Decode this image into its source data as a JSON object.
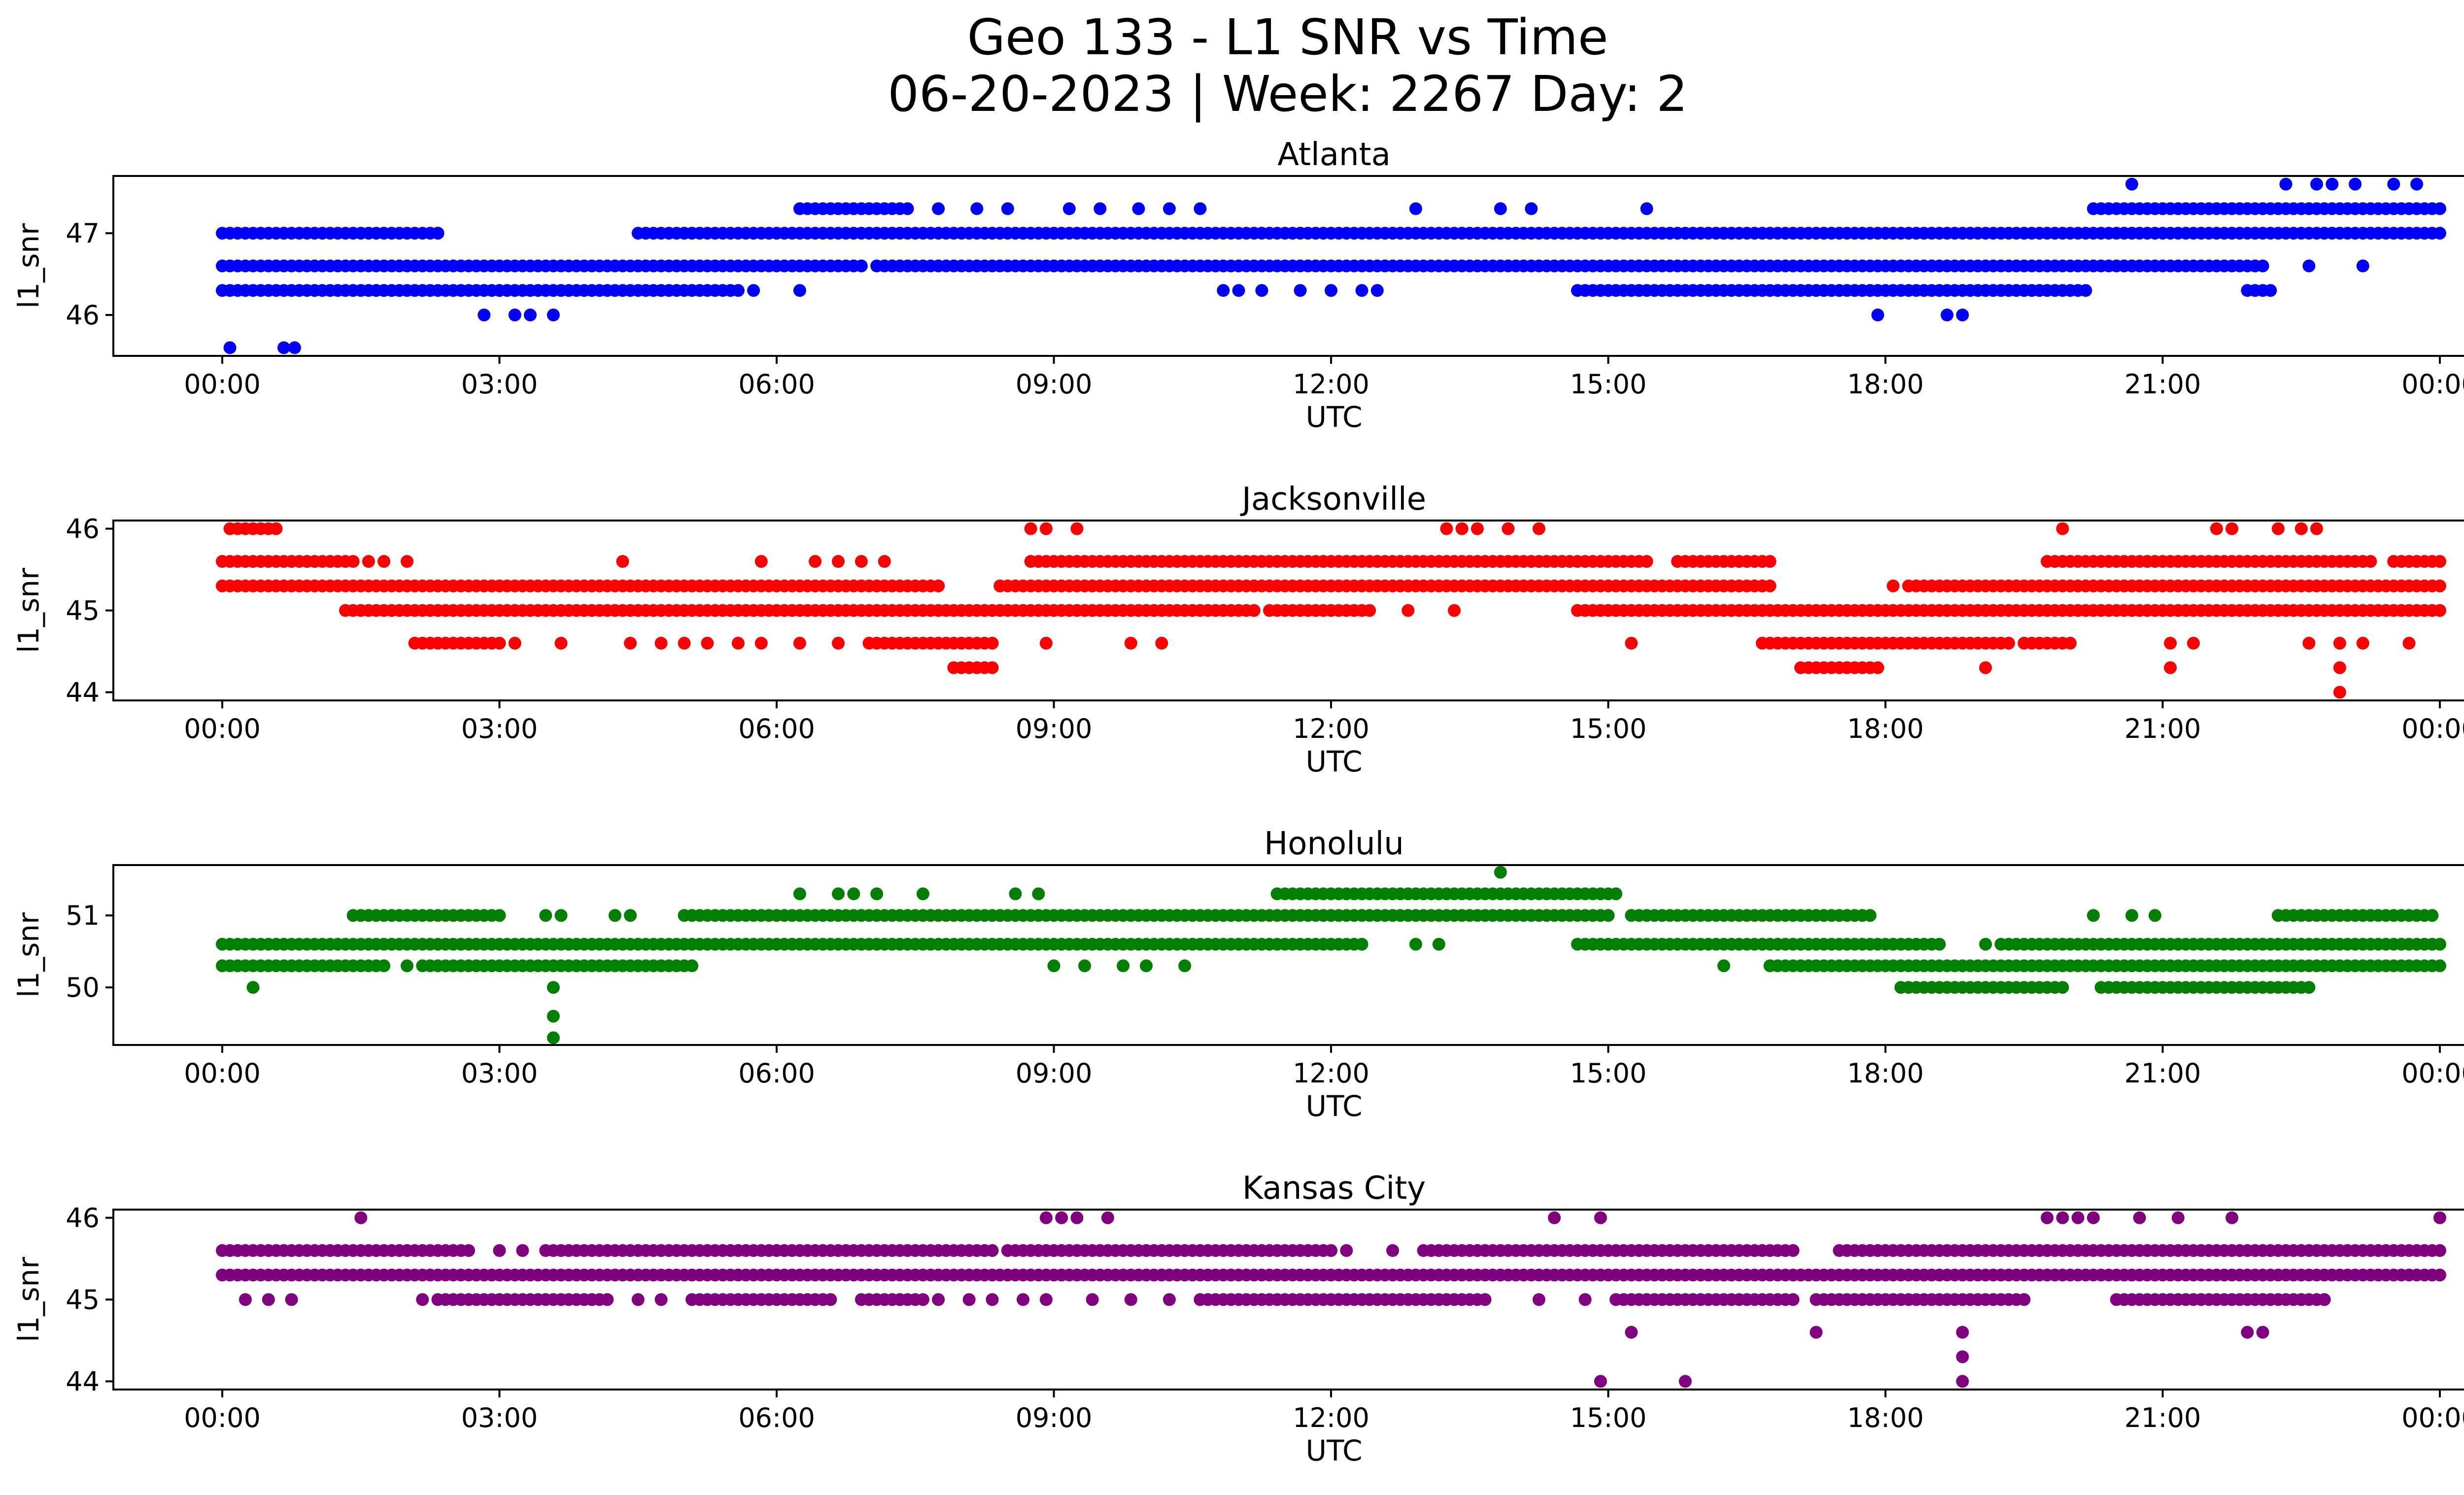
{
  "figure": {
    "title_line1": "Geo 133 - L1 SNR vs Time",
    "title_line2": "06-20-2023 | Week: 2267 Day: 2"
  },
  "chart_data": [
    {
      "type": "scatter",
      "title": "Atlanta",
      "xlabel": "UTC",
      "ylabel": "l1_snr",
      "color": "#0000ff",
      "xlim": [
        "2023-06-20 00:00",
        "2023-06-21 00:00"
      ],
      "ylim": [
        45.5,
        47.7
      ],
      "xticks": [
        "00:00",
        "03:00",
        "06:00",
        "09:00",
        "12:00",
        "15:00",
        "18:00",
        "21:00",
        "00:00"
      ],
      "yticks": [
        46,
        47
      ],
      "levels": [
        45.6,
        46.0,
        46.3,
        46.6,
        47.0,
        47.3,
        47.6
      ],
      "segments": {
        "46.6": [
          [
            "00:00",
            "06:55"
          ],
          [
            "07:05",
            "20:35"
          ],
          [
            "20:40",
            "22:05"
          ]
        ],
        "47.0": [
          [
            "00:00",
            "02:20"
          ],
          [
            "04:30",
            "24:00"
          ]
        ],
        "46.3": [
          [
            "00:00",
            "05:35"
          ],
          [
            "14:40",
            "20:10"
          ],
          [
            "21:55",
            "22:10"
          ]
        ],
        "47.3": [
          [
            "06:15",
            "07:25"
          ],
          [
            "20:15",
            "24:00"
          ]
        ]
      },
      "points": [
        [
          "00:05",
          45.6
        ],
        [
          "00:40",
          45.6
        ],
        [
          "00:47",
          45.6
        ],
        [
          "02:20",
          47.0
        ],
        [
          "02:50",
          46.0
        ],
        [
          "03:10",
          46.0
        ],
        [
          "03:20",
          46.0
        ],
        [
          "03:35",
          46.0
        ],
        [
          "05:45",
          46.3
        ],
        [
          "06:15",
          46.3
        ],
        [
          "07:45",
          47.3
        ],
        [
          "08:10",
          47.3
        ],
        [
          "08:30",
          47.3
        ],
        [
          "09:10",
          47.3
        ],
        [
          "09:30",
          47.3
        ],
        [
          "09:55",
          47.3
        ],
        [
          "10:15",
          47.3
        ],
        [
          "10:35",
          47.3
        ],
        [
          "10:50",
          46.3
        ],
        [
          "11:00",
          46.3
        ],
        [
          "11:15",
          46.3
        ],
        [
          "11:40",
          46.3
        ],
        [
          "12:00",
          46.3
        ],
        [
          "12:20",
          46.3
        ],
        [
          "12:30",
          46.3
        ],
        [
          "12:55",
          47.3
        ],
        [
          "13:50",
          47.3
        ],
        [
          "14:10",
          47.3
        ],
        [
          "15:25",
          47.3
        ],
        [
          "17:55",
          46.0
        ],
        [
          "18:40",
          46.0
        ],
        [
          "18:50",
          46.0
        ],
        [
          "20:40",
          47.6
        ],
        [
          "22:20",
          47.6
        ],
        [
          "22:40",
          47.6
        ],
        [
          "22:50",
          47.6
        ],
        [
          "23:05",
          47.6
        ],
        [
          "23:30",
          47.6
        ],
        [
          "23:45",
          47.6
        ],
        [
          "22:35",
          46.6
        ],
        [
          "23:10",
          46.6
        ]
      ]
    },
    {
      "type": "scatter",
      "title": "Jacksonville",
      "xlabel": "UTC",
      "ylabel": "l1_snr",
      "color": "#ff0000",
      "xlim": [
        "2023-06-20 00:00",
        "2023-06-21 00:00"
      ],
      "ylim": [
        43.9,
        46.1
      ],
      "xticks": [
        "00:00",
        "03:00",
        "06:00",
        "09:00",
        "12:00",
        "15:00",
        "18:00",
        "21:00",
        "00:00"
      ],
      "yticks": [
        44,
        45,
        46
      ],
      "levels": [
        44.0,
        44.3,
        44.6,
        45.0,
        45.3,
        45.6,
        46.0
      ],
      "segments": {
        "45.3": [
          [
            "00:00",
            "07:45"
          ],
          [
            "08:25",
            "16:45"
          ],
          [
            "18:15",
            "24:00"
          ]
        ],
        "45.6": [
          [
            "00:00",
            "01:25"
          ],
          [
            "08:45",
            "15:25"
          ],
          [
            "15:45",
            "16:45"
          ],
          [
            "19:45",
            "20:55"
          ],
          [
            "21:00",
            "23:15"
          ],
          [
            "23:30",
            "24:00"
          ]
        ],
        "45.0": [
          [
            "01:20",
            "11:10"
          ],
          [
            "11:20",
            "12:25"
          ],
          [
            "14:40",
            "21:25"
          ],
          [
            "21:30",
            "24:00"
          ]
        ],
        "44.6": [
          [
            "02:05",
            "03:00"
          ],
          [
            "07:00",
            "08:20"
          ],
          [
            "16:40",
            "19:20"
          ],
          [
            "19:30",
            "20:00"
          ]
        ],
        "46.0": [
          [
            "00:05",
            "00:35"
          ]
        ],
        "44.3": [
          [
            "07:55",
            "08:20"
          ],
          [
            "17:05",
            "17:50"
          ]
        ]
      },
      "points": [
        [
          "01:35",
          45.6
        ],
        [
          "01:45",
          45.6
        ],
        [
          "02:00",
          45.6
        ],
        [
          "03:10",
          44.6
        ],
        [
          "03:40",
          44.6
        ],
        [
          "04:25",
          44.6
        ],
        [
          "04:45",
          44.6
        ],
        [
          "05:00",
          44.6
        ],
        [
          "05:15",
          44.6
        ],
        [
          "05:35",
          44.6
        ],
        [
          "05:50",
          44.6
        ],
        [
          "06:15",
          44.6
        ],
        [
          "06:40",
          44.6
        ],
        [
          "04:20",
          45.6
        ],
        [
          "05:50",
          45.6
        ],
        [
          "06:25",
          45.6
        ],
        [
          "06:40",
          45.6
        ],
        [
          "06:55",
          45.6
        ],
        [
          "07:10",
          45.6
        ],
        [
          "08:45",
          46.0
        ],
        [
          "08:55",
          46.0
        ],
        [
          "09:15",
          46.0
        ],
        [
          "08:55",
          44.6
        ],
        [
          "09:50",
          44.6
        ],
        [
          "10:10",
          44.6
        ],
        [
          "12:50",
          45.0
        ],
        [
          "13:20",
          45.0
        ],
        [
          "13:15",
          46.0
        ],
        [
          "13:25",
          46.0
        ],
        [
          "13:35",
          46.0
        ],
        [
          "13:55",
          46.0
        ],
        [
          "14:15",
          46.0
        ],
        [
          "15:15",
          44.6
        ],
        [
          "17:55",
          44.3
        ],
        [
          "19:05",
          44.3
        ],
        [
          "18:05",
          45.3
        ],
        [
          "19:55",
          46.0
        ],
        [
          "21:05",
          44.3
        ],
        [
          "21:05",
          44.6
        ],
        [
          "21:20",
          44.6
        ],
        [
          "21:35",
          46.0
        ],
        [
          "21:45",
          46.0
        ],
        [
          "22:15",
          46.0
        ],
        [
          "22:30",
          46.0
        ],
        [
          "22:40",
          46.0
        ],
        [
          "22:35",
          44.6
        ],
        [
          "22:55",
          44.6
        ],
        [
          "23:10",
          44.6
        ],
        [
          "23:40",
          44.6
        ],
        [
          "22:55",
          44.3
        ],
        [
          "22:55",
          44.0
        ]
      ]
    },
    {
      "type": "scatter",
      "title": "Honolulu",
      "xlabel": "UTC",
      "ylabel": "l1_snr",
      "color": "#008000",
      "xlim": [
        "2023-06-20 00:00",
        "2023-06-21 00:00"
      ],
      "ylim": [
        49.2,
        51.7
      ],
      "xticks": [
        "00:00",
        "03:00",
        "06:00",
        "09:00",
        "12:00",
        "15:00",
        "18:00",
        "21:00",
        "00:00"
      ],
      "yticks": [
        50,
        51
      ],
      "levels": [
        49.3,
        49.6,
        50.0,
        50.3,
        50.6,
        51.0,
        51.3,
        51.6
      ],
      "segments": {
        "50.6": [
          [
            "00:00",
            "11:30"
          ],
          [
            "11:35",
            "12:20"
          ],
          [
            "14:40",
            "18:35"
          ],
          [
            "19:15",
            "24:00"
          ]
        ],
        "50.3": [
          [
            "00:00",
            "01:40"
          ],
          [
            "02:10",
            "05:05"
          ],
          [
            "16:45",
            "19:50"
          ],
          [
            "19:55",
            "24:00"
          ]
        ],
        "51.0": [
          [
            "01:25",
            "03:00"
          ],
          [
            "05:00",
            "15:00"
          ],
          [
            "15:15",
            "17:50"
          ],
          [
            "22:15",
            "23:55"
          ]
        ],
        "51.3": [
          [
            "11:25",
            "15:05"
          ]
        ],
        "50.0": [
          [
            "18:10",
            "19:55"
          ],
          [
            "20:20",
            "22:35"
          ]
        ]
      },
      "points": [
        [
          "00:20",
          50.0
        ],
        [
          "01:45",
          50.3
        ],
        [
          "02:00",
          50.3
        ],
        [
          "03:30",
          51.0
        ],
        [
          "03:40",
          51.0
        ],
        [
          "03:35",
          50.0
        ],
        [
          "03:35",
          49.6
        ],
        [
          "03:35",
          49.3
        ],
        [
          "04:15",
          51.0
        ],
        [
          "04:25",
          51.0
        ],
        [
          "06:15",
          51.3
        ],
        [
          "06:40",
          51.3
        ],
        [
          "06:50",
          51.3
        ],
        [
          "07:05",
          51.3
        ],
        [
          "07:35",
          51.3
        ],
        [
          "08:35",
          51.3
        ],
        [
          "08:50",
          51.3
        ],
        [
          "09:00",
          50.3
        ],
        [
          "09:20",
          50.3
        ],
        [
          "09:45",
          50.3
        ],
        [
          "10:00",
          50.3
        ],
        [
          "10:25",
          50.3
        ],
        [
          "12:55",
          50.6
        ],
        [
          "13:10",
          50.6
        ],
        [
          "13:50",
          51.6
        ],
        [
          "16:15",
          50.3
        ],
        [
          "19:05",
          50.6
        ],
        [
          "20:15",
          51.0
        ],
        [
          "20:40",
          51.0
        ],
        [
          "20:55",
          51.0
        ]
      ]
    },
    {
      "type": "scatter",
      "title": "Kansas City",
      "xlabel": "UTC",
      "ylabel": "l1_snr",
      "color": "#800080",
      "xlim": [
        "2023-06-20 00:00",
        "2023-06-21 00:00"
      ],
      "ylim": [
        43.9,
        46.1
      ],
      "xticks": [
        "00:00",
        "03:00",
        "06:00",
        "09:00",
        "12:00",
        "15:00",
        "18:00",
        "21:00",
        "00:00"
      ],
      "yticks": [
        44,
        45,
        46
      ],
      "levels": [
        44.0,
        44.3,
        44.6,
        45.0,
        45.3,
        45.6,
        46.0
      ],
      "segments": {
        "45.3": [
          [
            "00:00",
            "24:00"
          ]
        ],
        "45.6": [
          [
            "00:00",
            "02:40"
          ],
          [
            "03:30",
            "08:20"
          ],
          [
            "08:30",
            "12:00"
          ],
          [
            "13:00",
            "17:00"
          ],
          [
            "17:30",
            "20:30"
          ],
          [
            "20:35",
            "24:00"
          ]
        ],
        "45.0": [
          [
            "02:25",
            "04:10"
          ],
          [
            "05:05",
            "06:35"
          ],
          [
            "06:55",
            "07:35"
          ],
          [
            "10:40",
            "13:40"
          ],
          [
            "15:05",
            "17:00"
          ],
          [
            "17:15",
            "19:30"
          ],
          [
            "20:30",
            "22:45"
          ]
        ]
      },
      "points": [
        [
          "00:15",
          45.0
        ],
        [
          "00:30",
          45.0
        ],
        [
          "00:45",
          45.0
        ],
        [
          "01:30",
          46.0
        ],
        [
          "02:10",
          45.0
        ],
        [
          "02:20",
          45.0
        ],
        [
          "03:00",
          45.6
        ],
        [
          "03:15",
          45.6
        ],
        [
          "04:00",
          45.0
        ],
        [
          "04:30",
          45.0
        ],
        [
          "04:45",
          45.0
        ],
        [
          "07:20",
          45.0
        ],
        [
          "07:45",
          45.0
        ],
        [
          "08:05",
          45.0
        ],
        [
          "08:20",
          45.0
        ],
        [
          "08:40",
          45.0
        ],
        [
          "08:55",
          45.0
        ],
        [
          "09:25",
          45.0
        ],
        [
          "09:50",
          45.0
        ],
        [
          "10:15",
          45.0
        ],
        [
          "10:35",
          45.0
        ],
        [
          "08:55",
          46.0
        ],
        [
          "09:05",
          46.0
        ],
        [
          "09:15",
          46.0
        ],
        [
          "09:35",
          46.0
        ],
        [
          "11:45",
          45.6
        ],
        [
          "12:10",
          45.6
        ],
        [
          "12:40",
          45.6
        ],
        [
          "14:15",
          45.0
        ],
        [
          "14:25",
          46.0
        ],
        [
          "14:45",
          45.0
        ],
        [
          "14:55",
          46.0
        ],
        [
          "14:55",
          44.0
        ],
        [
          "15:15",
          44.6
        ],
        [
          "15:50",
          44.0
        ],
        [
          "17:15",
          44.6
        ],
        [
          "18:50",
          44.6
        ],
        [
          "18:50",
          44.3
        ],
        [
          "18:50",
          44.0
        ],
        [
          "19:45",
          46.0
        ],
        [
          "19:55",
          46.0
        ],
        [
          "20:05",
          46.0
        ],
        [
          "20:15",
          46.0
        ],
        [
          "20:45",
          46.0
        ],
        [
          "21:10",
          46.0
        ],
        [
          "21:45",
          46.0
        ],
        [
          "21:55",
          44.6
        ],
        [
          "22:05",
          44.6
        ],
        [
          "22:30",
          45.0
        ],
        [
          "22:45",
          45.0
        ],
        [
          "24:00",
          46.0
        ]
      ]
    }
  ]
}
